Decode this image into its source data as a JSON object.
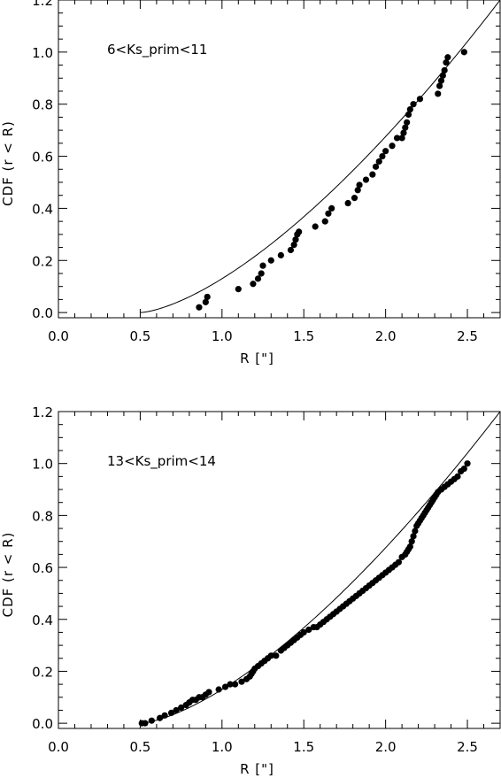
{
  "chart_data": [
    {
      "type": "scatter",
      "title": "",
      "annotation": "6<Ks_prim<11",
      "xlabel": "R [\"]",
      "ylabel": "CDF (r < R)",
      "xlim": [
        0.0,
        2.7
      ],
      "ylim": [
        -0.02,
        1.2
      ],
      "xticks": [
        "0.0",
        "0.5",
        "1.0",
        "1.5",
        "2.0",
        "2.5"
      ],
      "yticks": [
        "0.0",
        "0.2",
        "0.4",
        "0.6",
        "0.8",
        "1.0",
        "1.2"
      ],
      "model_curve": {
        "x0": 0.5,
        "x1": 2.7,
        "y_at_x1": 1.2
      },
      "points": {
        "x": [
          0.86,
          0.9,
          0.91,
          1.1,
          1.19,
          1.22,
          1.24,
          1.25,
          1.3,
          1.36,
          1.42,
          1.44,
          1.45,
          1.46,
          1.47,
          1.57,
          1.63,
          1.65,
          1.67,
          1.77,
          1.81,
          1.83,
          1.84,
          1.88,
          1.92,
          1.94,
          1.96,
          1.98,
          2.0,
          2.04,
          2.07,
          2.1,
          2.11,
          2.12,
          2.13,
          2.14,
          2.15,
          2.17,
          2.21,
          2.32,
          2.33,
          2.34,
          2.35,
          2.36,
          2.37,
          2.38,
          2.48
        ],
        "y": [
          0.02,
          0.04,
          0.06,
          0.09,
          0.11,
          0.13,
          0.15,
          0.18,
          0.2,
          0.22,
          0.24,
          0.26,
          0.28,
          0.3,
          0.31,
          0.33,
          0.35,
          0.38,
          0.4,
          0.42,
          0.44,
          0.47,
          0.49,
          0.51,
          0.53,
          0.56,
          0.58,
          0.6,
          0.62,
          0.64,
          0.67,
          0.67,
          0.69,
          0.71,
          0.73,
          0.76,
          0.78,
          0.8,
          0.82,
          0.84,
          0.87,
          0.89,
          0.91,
          0.93,
          0.96,
          0.98,
          1.0
        ]
      }
    },
    {
      "type": "scatter",
      "title": "",
      "annotation": "13<Ks_prim<14",
      "xlabel": "R [\"]",
      "ylabel": "CDF (r < R)",
      "xlim": [
        0.0,
        2.7
      ],
      "ylim": [
        -0.02,
        1.2
      ],
      "xticks": [
        "0.0",
        "0.5",
        "1.0",
        "1.5",
        "2.0",
        "2.5"
      ],
      "yticks": [
        "0.0",
        "0.2",
        "0.4",
        "0.6",
        "0.8",
        "1.0",
        "1.2"
      ],
      "model_curve": {
        "x0": 0.5,
        "x1": 2.7,
        "y_at_x1": 1.2
      },
      "points": {
        "x": [
          0.51,
          0.53,
          0.57,
          0.62,
          0.65,
          0.69,
          0.72,
          0.75,
          0.78,
          0.8,
          0.82,
          0.84,
          0.86,
          0.88,
          0.9,
          0.92,
          0.98,
          1.02,
          1.05,
          1.08,
          1.12,
          1.15,
          1.17,
          1.18,
          1.19,
          1.2,
          1.22,
          1.24,
          1.26,
          1.28,
          1.3,
          1.33,
          1.36,
          1.38,
          1.4,
          1.42,
          1.44,
          1.46,
          1.48,
          1.5,
          1.53,
          1.56,
          1.58,
          1.6,
          1.62,
          1.64,
          1.66,
          1.68,
          1.7,
          1.72,
          1.74,
          1.76,
          1.78,
          1.8,
          1.82,
          1.84,
          1.86,
          1.88,
          1.9,
          1.92,
          1.94,
          1.96,
          1.98,
          2.0,
          2.02,
          2.04,
          2.06,
          2.08,
          2.1,
          2.12,
          2.13,
          2.14,
          2.15,
          2.16,
          2.17,
          2.18,
          2.19,
          2.2,
          2.21,
          2.22,
          2.23,
          2.24,
          2.25,
          2.26,
          2.27,
          2.28,
          2.29,
          2.3,
          2.31,
          2.32,
          2.34,
          2.36,
          2.38,
          2.4,
          2.42,
          2.44,
          2.46,
          2.48,
          2.5
        ],
        "y": [
          0.0,
          0.0,
          0.01,
          0.02,
          0.03,
          0.04,
          0.05,
          0.06,
          0.07,
          0.08,
          0.09,
          0.09,
          0.1,
          0.1,
          0.11,
          0.12,
          0.13,
          0.14,
          0.15,
          0.15,
          0.16,
          0.17,
          0.18,
          0.19,
          0.2,
          0.21,
          0.22,
          0.23,
          0.24,
          0.25,
          0.26,
          0.26,
          0.28,
          0.29,
          0.3,
          0.31,
          0.32,
          0.33,
          0.34,
          0.35,
          0.36,
          0.37,
          0.37,
          0.38,
          0.39,
          0.4,
          0.41,
          0.42,
          0.43,
          0.44,
          0.45,
          0.46,
          0.47,
          0.48,
          0.49,
          0.5,
          0.51,
          0.52,
          0.53,
          0.54,
          0.55,
          0.56,
          0.57,
          0.58,
          0.59,
          0.6,
          0.61,
          0.62,
          0.64,
          0.65,
          0.66,
          0.67,
          0.68,
          0.7,
          0.72,
          0.74,
          0.76,
          0.77,
          0.78,
          0.79,
          0.8,
          0.81,
          0.82,
          0.83,
          0.84,
          0.85,
          0.86,
          0.87,
          0.88,
          0.89,
          0.9,
          0.91,
          0.92,
          0.93,
          0.94,
          0.95,
          0.97,
          0.98,
          1.0
        ]
      }
    }
  ]
}
